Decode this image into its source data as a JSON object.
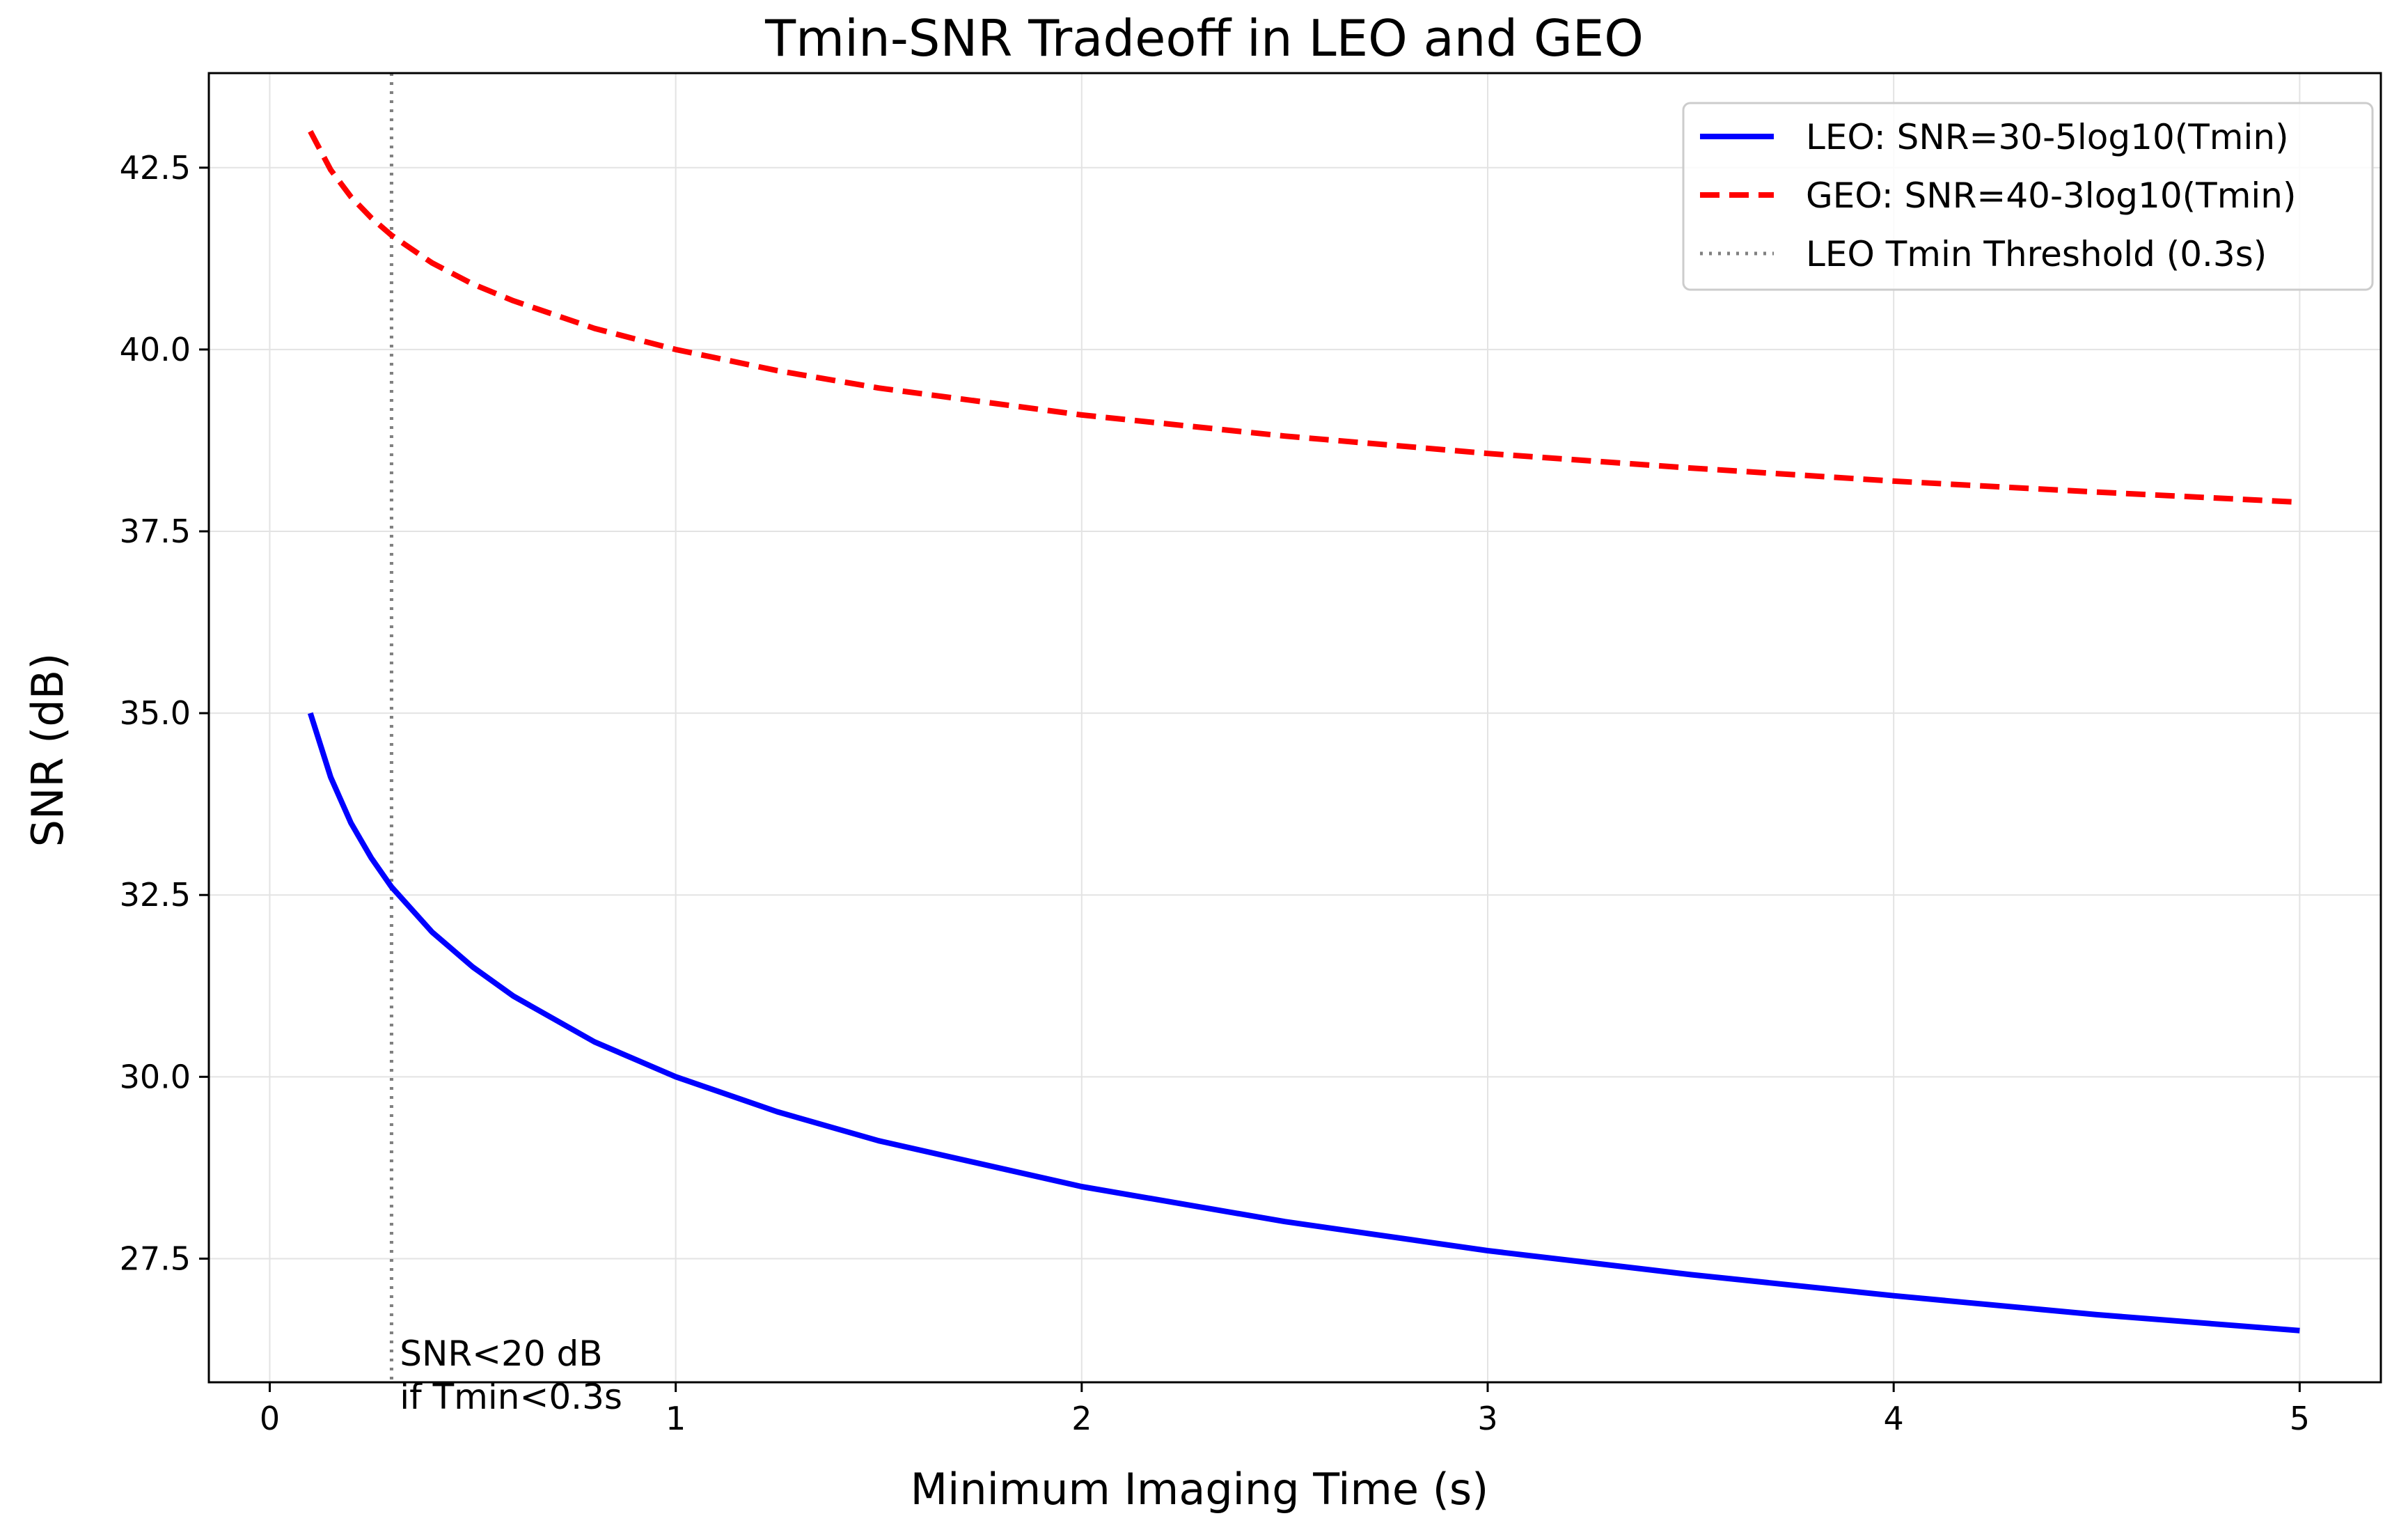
{
  "chart_data": {
    "type": "line",
    "title": "Tmin-SNR Tradeoff in LEO and GEO",
    "xlabel": "Minimum Imaging Time (s)",
    "ylabel": "SNR (dB)",
    "xlim": [
      -0.15,
      5.2
    ],
    "ylim": [
      25.8,
      43.8
    ],
    "grid": true,
    "legend_position": "top-right",
    "x_ticks": [
      0,
      1,
      2,
      3,
      4,
      5
    ],
    "x_tick_labels": [
      "0",
      "1",
      "2",
      "3",
      "4",
      "5"
    ],
    "y_ticks": [
      27.5,
      30.0,
      32.5,
      35.0,
      37.5,
      40.0,
      42.5
    ],
    "y_tick_labels": [
      "27.5",
      "30.0",
      "32.5",
      "35.0",
      "37.5",
      "40.0",
      "42.5"
    ],
    "series": [
      {
        "name": "LEO: SNR=30-5log10(Tmin)",
        "color": "#0000ff",
        "style": "solid",
        "x": [
          0.1,
          0.15,
          0.2,
          0.25,
          0.3,
          0.4,
          0.5,
          0.6,
          0.8,
          1.0,
          1.25,
          1.5,
          2.0,
          2.5,
          3.0,
          3.5,
          4.0,
          4.5,
          5.0
        ],
        "values": [
          35.0,
          34.12,
          33.49,
          33.01,
          32.61,
          31.99,
          31.51,
          31.11,
          30.48,
          30.0,
          29.52,
          29.12,
          28.49,
          28.01,
          27.61,
          27.28,
          26.99,
          26.73,
          26.51
        ]
      },
      {
        "name": "GEO: SNR=40-3log10(Tmin)",
        "color": "#ff0000",
        "style": "dashed",
        "x": [
          0.1,
          0.15,
          0.2,
          0.25,
          0.3,
          0.4,
          0.5,
          0.6,
          0.8,
          1.0,
          1.25,
          1.5,
          2.0,
          2.5,
          3.0,
          3.5,
          4.0,
          4.5,
          5.0
        ],
        "values": [
          43.0,
          42.47,
          42.1,
          41.81,
          41.57,
          41.19,
          40.9,
          40.67,
          40.29,
          40.0,
          39.71,
          39.47,
          39.1,
          38.81,
          38.57,
          38.37,
          38.19,
          38.04,
          37.9
        ]
      }
    ],
    "threshold": {
      "name": "LEO Tmin Threshold (0.3s)",
      "x": 0.3,
      "color": "#808080",
      "style": "dotted"
    },
    "annotation": {
      "lines": [
        "SNR<20 dB",
        "if Tmin<0.3s"
      ],
      "x": 0.31,
      "y": 26.2
    }
  }
}
